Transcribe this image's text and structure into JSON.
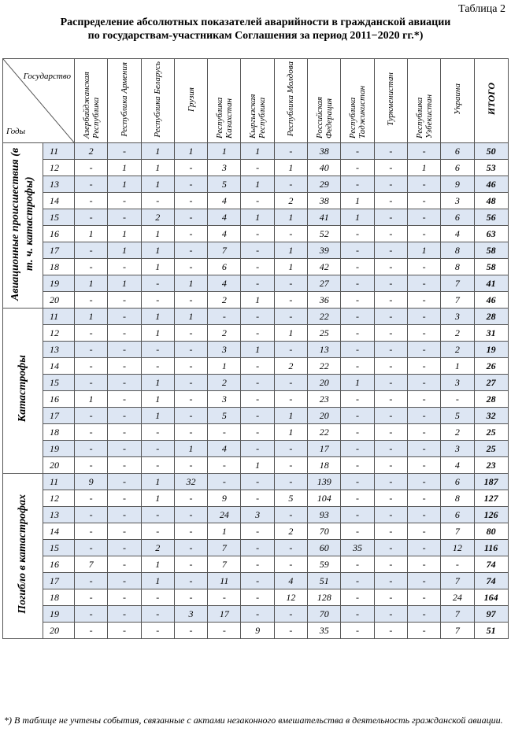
{
  "table_label": "Таблица 2",
  "title_line1": "Распределение абсолютных показателей аварийности в гражданской авиации",
  "title_line2": "по государствам-участникам Соглашения за период 2011−2020 гг.*)",
  "corner_state": "Государство",
  "corner_years": "Годы",
  "columns": [
    "Азербайджанская Республика",
    "Республика Армения",
    "Республика Беларусь",
    "Грузия",
    "Республика Казахстан",
    "Кыргызская Республика",
    "Республика Молдова",
    "Российская Федерация",
    "Республика Таджикистан",
    "Туркменистан",
    "Республика Узбекистан",
    "Украина",
    "ИТОГО"
  ],
  "groups": [
    {
      "label": "Авиационные происшествия (в т. ч. катастрофы)",
      "rows": [
        [
          "11",
          "2",
          "-",
          "1",
          "1",
          "1",
          "1",
          "-",
          "38",
          "-",
          "-",
          "-",
          "6",
          "50"
        ],
        [
          "12",
          "-",
          "1",
          "1",
          "-",
          "3",
          "-",
          "1",
          "40",
          "-",
          "-",
          "1",
          "6",
          "53"
        ],
        [
          "13",
          "-",
          "1",
          "1",
          "-",
          "5",
          "1",
          "-",
          "29",
          "-",
          "-",
          "-",
          "9",
          "46"
        ],
        [
          "14",
          "-",
          "-",
          "-",
          "-",
          "4",
          "-",
          "2",
          "38",
          "1",
          "-",
          "-",
          "3",
          "48"
        ],
        [
          "15",
          "-",
          "-",
          "2",
          "-",
          "4",
          "1",
          "1",
          "41",
          "1",
          "-",
          "-",
          "6",
          "56"
        ],
        [
          "16",
          "1",
          "1",
          "1",
          "-",
          "4",
          "-",
          "-",
          "52",
          "-",
          "-",
          "-",
          "4",
          "63"
        ],
        [
          "17",
          "-",
          "1",
          "1",
          "-",
          "7",
          "-",
          "1",
          "39",
          "-",
          "-",
          "1",
          "8",
          "58"
        ],
        [
          "18",
          "-",
          "-",
          "1",
          "-",
          "6",
          "-",
          "1",
          "42",
          "-",
          "-",
          "-",
          "8",
          "58"
        ],
        [
          "19",
          "1",
          "1",
          "-",
          "1",
          "4",
          "-",
          "-",
          "27",
          "-",
          "-",
          "-",
          "7",
          "41"
        ],
        [
          "20",
          "-",
          "-",
          "-",
          "-",
          "2",
          "1",
          "-",
          "36",
          "-",
          "-",
          "-",
          "7",
          "46"
        ]
      ]
    },
    {
      "label": "Катастрофы",
      "rows": [
        [
          "11",
          "1",
          "-",
          "1",
          "1",
          "-",
          "-",
          "-",
          "22",
          "-",
          "-",
          "-",
          "3",
          "28"
        ],
        [
          "12",
          "-",
          "-",
          "1",
          "-",
          "2",
          "-",
          "1",
          "25",
          "-",
          "-",
          "-",
          "2",
          "31"
        ],
        [
          "13",
          "-",
          "-",
          "-",
          "-",
          "3",
          "1",
          "-",
          "13",
          "-",
          "-",
          "-",
          "2",
          "19"
        ],
        [
          "14",
          "-",
          "-",
          "-",
          "-",
          "1",
          "-",
          "2",
          "22",
          "-",
          "-",
          "-",
          "1",
          "26"
        ],
        [
          "15",
          "-",
          "-",
          "1",
          "-",
          "2",
          "-",
          "-",
          "20",
          "1",
          "-",
          "-",
          "3",
          "27"
        ],
        [
          "16",
          "1",
          "-",
          "1",
          "-",
          "3",
          "-",
          "-",
          "23",
          "-",
          "-",
          "-",
          "-",
          "28"
        ],
        [
          "17",
          "-",
          "-",
          "1",
          "-",
          "5",
          "-",
          "1",
          "20",
          "-",
          "-",
          "-",
          "5",
          "32"
        ],
        [
          "18",
          "-",
          "-",
          "-",
          "-",
          "-",
          "-",
          "1",
          "22",
          "-",
          "-",
          "-",
          "2",
          "25"
        ],
        [
          "19",
          "-",
          "-",
          "-",
          "1",
          "4",
          "-",
          "-",
          "17",
          "-",
          "-",
          "-",
          "3",
          "25"
        ],
        [
          "20",
          "-",
          "-",
          "-",
          "-",
          "-",
          "1",
          "-",
          "18",
          "-",
          "-",
          "-",
          "4",
          "23"
        ]
      ]
    },
    {
      "label": "Погибло в катастрофах",
      "rows": [
        [
          "11",
          "9",
          "-",
          "1",
          "32",
          "-",
          "-",
          "-",
          "139",
          "-",
          "-",
          "-",
          "6",
          "187"
        ],
        [
          "12",
          "-",
          "-",
          "1",
          "-",
          "9",
          "-",
          "5",
          "104",
          "-",
          "-",
          "-",
          "8",
          "127"
        ],
        [
          "13",
          "-",
          "-",
          "-",
          "-",
          "24",
          "3",
          "-",
          "93",
          "-",
          "-",
          "-",
          "6",
          "126"
        ],
        [
          "14",
          "-",
          "-",
          "-",
          "-",
          "1",
          "-",
          "2",
          "70",
          "-",
          "-",
          "-",
          "7",
          "80"
        ],
        [
          "15",
          "-",
          "-",
          "2",
          "-",
          "7",
          "-",
          "-",
          "60",
          "35",
          "-",
          "-",
          "12",
          "116"
        ],
        [
          "16",
          "7",
          "-",
          "1",
          "-",
          "7",
          "-",
          "-",
          "59",
          "-",
          "-",
          "-",
          "-",
          "74"
        ],
        [
          "17",
          "-",
          "-",
          "1",
          "-",
          "11",
          "-",
          "4",
          "51",
          "-",
          "-",
          "-",
          "7",
          "74"
        ],
        [
          "18",
          "-",
          "-",
          "-",
          "-",
          "-",
          "-",
          "12",
          "128",
          "-",
          "-",
          "-",
          "24",
          "164"
        ],
        [
          "19",
          "-",
          "-",
          "-",
          "3",
          "17",
          "-",
          "-",
          "70",
          "-",
          "-",
          "-",
          "7",
          "97"
        ],
        [
          "20",
          "-",
          "-",
          "-",
          "-",
          "-",
          "9",
          "-",
          "35",
          "-",
          "-",
          "-",
          "7",
          "51"
        ]
      ]
    }
  ],
  "footnote": "*) В таблице не учтены события, связанные с актами незаконного вмешательства в деятельность гражданской авиации."
}
